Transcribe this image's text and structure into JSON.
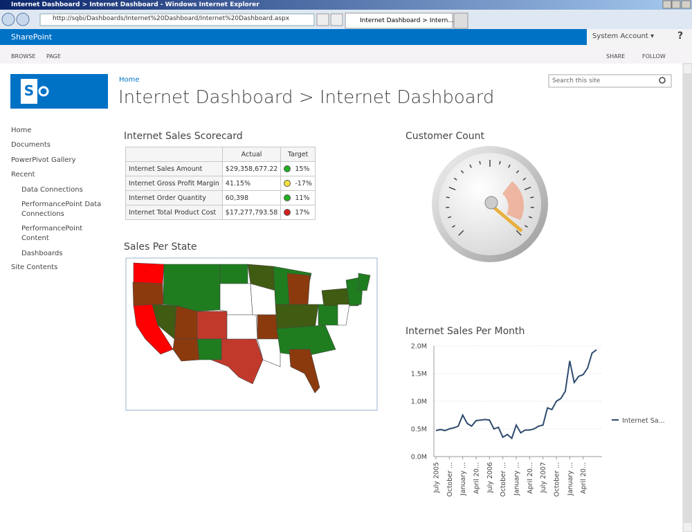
{
  "browser": {
    "window_title": "Internet Dashboard > Internet Dashboard - Windows Internet Explorer",
    "url": "http://sqbi/Dashboards/Internet%20Dashboard/Internet%20Dashboard.aspx",
    "tab_title": "Internet Dashboard > Intern..."
  },
  "suite_bar": {
    "brand": "SharePoint",
    "user": "System Account ▾",
    "help": "?"
  },
  "ribbon": {
    "tabs": [
      "BROWSE",
      "PAGE"
    ],
    "actions": [
      "SHARE",
      "FOLLOW"
    ]
  },
  "header": {
    "breadcrumb": "Home",
    "title": "Internet Dashboard > Internet Dashboard",
    "search_placeholder": "Search this site"
  },
  "nav": {
    "items": [
      "Home",
      "Documents",
      "PowerPivot Gallery",
      "Recent"
    ],
    "recent": [
      "Data Connections",
      "PerformancePoint Data Connections",
      "PerformancePoint Content",
      "Dashboards"
    ],
    "footer": "Site Contents"
  },
  "scorecard": {
    "title": "Internet Sales Scorecard",
    "columns": [
      "Actual",
      "Target"
    ],
    "rows": [
      {
        "label": "Internet Sales Amount",
        "actual": "$29,358,677.22",
        "target": "15%",
        "indicator": "#22b022"
      },
      {
        "label": "Internet Gross Profit Margin",
        "actual": "41.15%",
        "target": "-17%",
        "indicator": "#f4e23c"
      },
      {
        "label": "Internet Order Quantity",
        "actual": "60,398",
        "target": "11%",
        "indicator": "#22b022"
      },
      {
        "label": "Internet Total Product Cost",
        "actual": "$17,277,793.58",
        "target": "17%",
        "indicator": "#d42020"
      }
    ]
  },
  "map": {
    "title": "Sales Per State"
  },
  "gauge": {
    "title": "Customer Count"
  },
  "sales_chart": {
    "type": "line",
    "title": "Internet Sales Per Month",
    "categories": [
      "July 2005",
      null,
      null,
      "October ...",
      null,
      null,
      "January ...",
      null,
      null,
      "April 20...",
      null,
      null,
      "July 2006",
      null,
      null,
      "October ...",
      null,
      null,
      "January ...",
      null,
      null,
      "April 20...",
      null,
      null,
      "July 2007",
      null,
      null,
      "October ...",
      null,
      null,
      "January ...",
      null,
      null,
      "April 20...",
      null,
      null,
      null
    ],
    "series": [
      {
        "name": "Internet Sa...",
        "color": "#2e4a6e",
        "values": [
          470000,
          490000,
          470000,
          500000,
          520000,
          550000,
          750000,
          600000,
          550000,
          650000,
          660000,
          670000,
          660000,
          500000,
          530000,
          350000,
          400000,
          330000,
          570000,
          430000,
          480000,
          480000,
          500000,
          550000,
          570000,
          880000,
          850000,
          1000000,
          1050000,
          1180000,
          1730000,
          1340000,
          1450000,
          1480000,
          1600000,
          1870000,
          1930000
        ]
      }
    ],
    "ylim": [
      0,
      2000000
    ],
    "yticks": [
      {
        "value": 0,
        "label": "0.0M"
      },
      {
        "value": 500000,
        "label": "0.5M"
      },
      {
        "value": 1000000,
        "label": "1.0M"
      },
      {
        "value": 1500000,
        "label": "1.5M"
      },
      {
        "value": 2000000,
        "label": "2.0M"
      }
    ],
    "grid": true
  }
}
